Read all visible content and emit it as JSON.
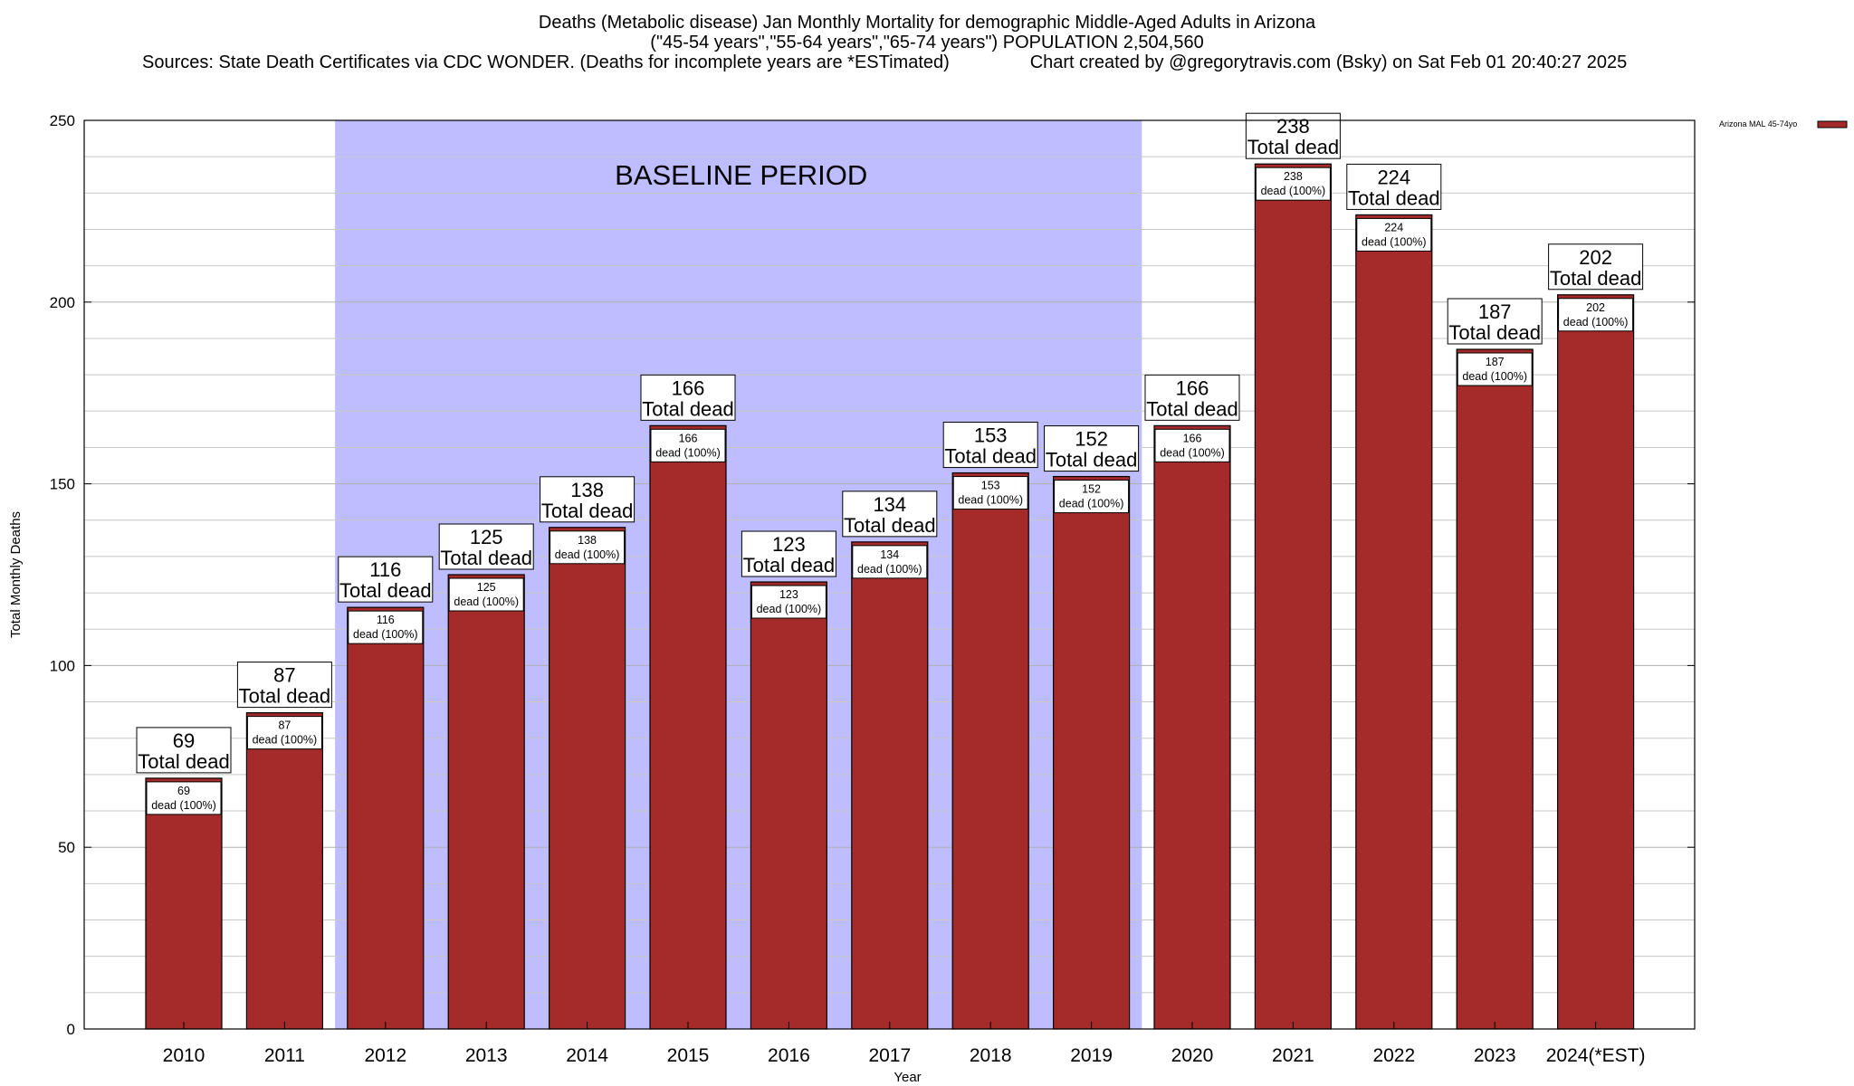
{
  "title": {
    "line1": "Deaths (Metabolic disease) Jan Monthly Mortality for demographic Middle-Aged Adults in Arizona",
    "line2": "(\"45-54 years\",\"55-64 years\",\"65-74 years\") POPULATION 2,504,560",
    "line3": "Sources: State Death Certificates via CDC WONDER. (Deaths for incomplete years are *ESTimated)                Chart created by @gregorytravis.com (Bsky) on Sat Feb 01 20:40:27 2025"
  },
  "chart_data": {
    "type": "bar",
    "categories": [
      "2010",
      "2011",
      "2012",
      "2013",
      "2014",
      "2015",
      "2016",
      "2017",
      "2018",
      "2019",
      "2020",
      "2021",
      "2022",
      "2023",
      "2024(*EST)"
    ],
    "series": [
      {
        "name": "Arizona MAL 45-74yo",
        "values": [
          69,
          87,
          116,
          125,
          138,
          166,
          123,
          134,
          153,
          152,
          166,
          238,
          224,
          187,
          202
        ],
        "color": "#a52a2a"
      }
    ],
    "xlabel": "Year",
    "ylabel": "Total Monthly Deaths",
    "ylim": [
      0,
      250
    ],
    "yticks": [
      0,
      50,
      100,
      150,
      200,
      250
    ],
    "grid": true,
    "legend_position": "top-right",
    "label_total_suffix": "Total dead",
    "label_inner_suffix": "dead (100%)",
    "baseline": {
      "label": "BASELINE PERIOD",
      "from": "2012",
      "to": "2019",
      "color": "#bdbdff"
    }
  }
}
